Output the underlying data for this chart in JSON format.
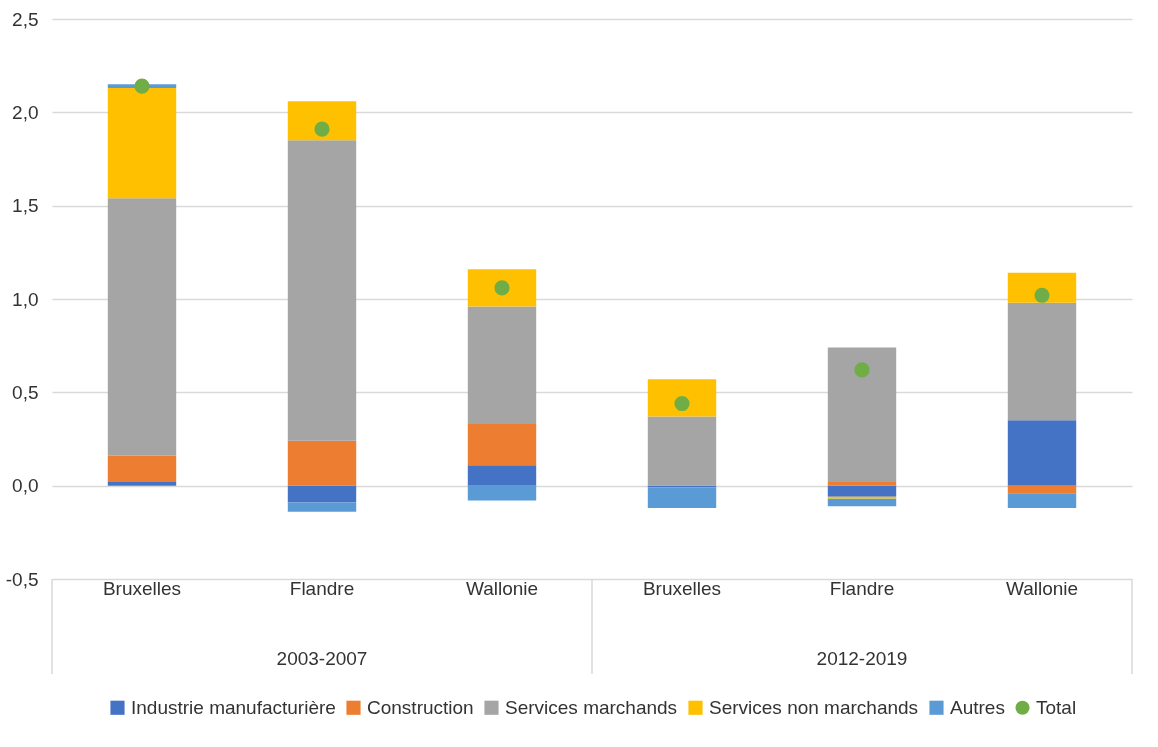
{
  "chart_data": {
    "type": "bar",
    "stacked": true,
    "categories": [
      "Bruxelles",
      "Flandre",
      "Wallonie",
      "Bruxelles",
      "Flandre",
      "Wallonie"
    ],
    "annotations": [
      "2003-2007",
      "2012-2019"
    ],
    "series": [
      {
        "name": "Industrie manufacturière",
        "color": "#4472c4",
        "values": [
          0.02,
          -0.09,
          0.11,
          -0.01,
          -0.06,
          0.35
        ]
      },
      {
        "name": "Construction",
        "color": "#ed7d31",
        "values": [
          0.14,
          0.24,
          0.22,
          0,
          0.02,
          -0.04
        ]
      },
      {
        "name": "Services marchands",
        "color": "#a5a5a5",
        "values": [
          1.38,
          1.61,
          0.63,
          0.37,
          0.72,
          0.63
        ]
      },
      {
        "name": "Services non marchands",
        "color": "#ffc000",
        "values": [
          0.59,
          0.21,
          0.2,
          0.2,
          -0.01,
          0.16
        ]
      },
      {
        "name": "Autres",
        "color": "#5b9bd5",
        "values": [
          0.02,
          -0.05,
          -0.08,
          -0.11,
          -0.04,
          -0.08
        ]
      },
      {
        "name": "Total",
        "type": "scatter",
        "color": "#70ad47",
        "values": [
          2.14,
          1.91,
          1.06,
          0.44,
          0.62,
          1.02
        ]
      }
    ],
    "ylim": [
      -0.5,
      2.5
    ],
    "yticks": [
      {
        "value": -0.5,
        "label": "-0,5"
      },
      {
        "value": 0,
        "label": "0,0"
      },
      {
        "value": 0.5,
        "label": "0,5"
      },
      {
        "value": 1,
        "label": "1,0"
      },
      {
        "value": 1.5,
        "label": "1,5"
      },
      {
        "value": 2,
        "label": "2,0"
      },
      {
        "value": 2.5,
        "label": "2,5"
      }
    ],
    "grid": "y",
    "legend": "bottom",
    "marker": "circle"
  }
}
